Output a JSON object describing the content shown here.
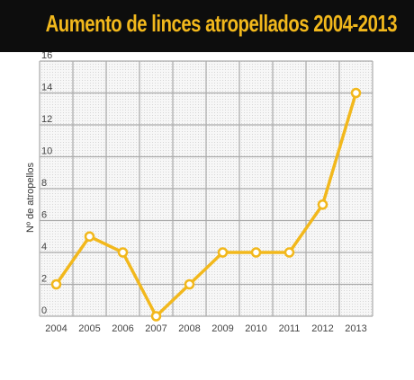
{
  "chart_data": {
    "type": "line",
    "title": "Aumento de linces atropellados 2004-2013",
    "xlabel": "",
    "ylabel": "Nº de atropellos",
    "x": [
      "2004",
      "2005",
      "2006",
      "2007",
      "2008",
      "2009",
      "2010",
      "2011",
      "2012",
      "2013"
    ],
    "series": [
      {
        "values": [
          2,
          5,
          4,
          0,
          2,
          4,
          4,
          4,
          7,
          14
        ]
      }
    ],
    "ylim": [
      0,
      16
    ],
    "yticks": [
      0,
      2,
      4,
      6,
      8,
      10,
      12,
      14,
      16
    ],
    "grid": true,
    "legend": "none",
    "colors": {
      "line": "#f2b81c",
      "marker_fill": "#ffffff",
      "title_bg": "#0d0d0d",
      "title_text": "#f2b81c",
      "grid": "#aaaaaa",
      "plot_bg": "#f4f4f4"
    }
  }
}
